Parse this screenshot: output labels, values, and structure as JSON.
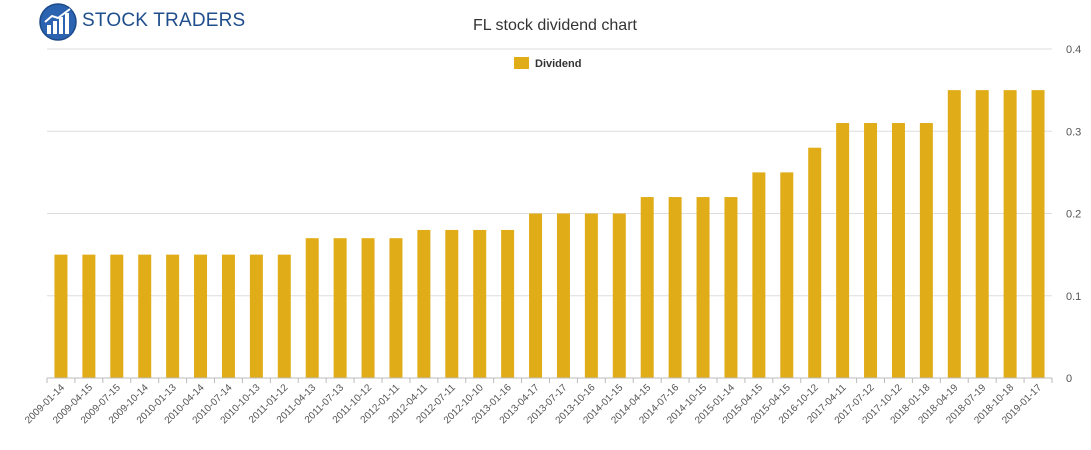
{
  "brand": {
    "name": "STOCK TRADERS"
  },
  "chart_data": {
    "type": "bar",
    "title": "FL stock dividend chart",
    "xlabel": "",
    "ylabel": "",
    "ylim": [
      0,
      0.4
    ],
    "yticks": [
      0,
      0.1,
      0.2,
      0.3,
      0.4
    ],
    "ytick_labels": [
      "0",
      "0.1",
      "0.2",
      "0.3",
      "0.4"
    ],
    "legend": {
      "position": "top-center",
      "entries": [
        "Dividend"
      ]
    },
    "bar_color": "#e0ad18",
    "grid": true,
    "categories": [
      "2009-01-14",
      "2009-04-15",
      "2009-07-15",
      "2009-10-14",
      "2010-01-13",
      "2010-04-14",
      "2010-07-14",
      "2010-10-13",
      "2011-01-12",
      "2011-04-13",
      "2011-07-13",
      "2011-10-12",
      "2012-01-11",
      "2012-04-11",
      "2012-07-11",
      "2012-10-10",
      "2013-01-16",
      "2013-04-17",
      "2013-07-17",
      "2013-10-16",
      "2014-01-15",
      "2014-04-15",
      "2014-07-16",
      "2014-10-15",
      "2015-01-14",
      "2015-04-15",
      "2015-04-15",
      "2016-10-12",
      "2017-04-11",
      "2017-07-12",
      "2017-10-12",
      "2018-01-18",
      "2018-04-19",
      "2018-07-19",
      "2018-10-18",
      "2019-01-17"
    ],
    "series": [
      {
        "name": "Dividend",
        "values": [
          0.15,
          0.15,
          0.15,
          0.15,
          0.15,
          0.15,
          0.15,
          0.15,
          0.15,
          0.17,
          0.17,
          0.17,
          0.17,
          0.18,
          0.18,
          0.18,
          0.18,
          0.2,
          0.2,
          0.2,
          0.2,
          0.22,
          0.22,
          0.22,
          0.22,
          0.25,
          0.25,
          0.28,
          0.31,
          0.31,
          0.31,
          0.31,
          0.35,
          0.35,
          0.35,
          0.35
        ]
      }
    ]
  }
}
